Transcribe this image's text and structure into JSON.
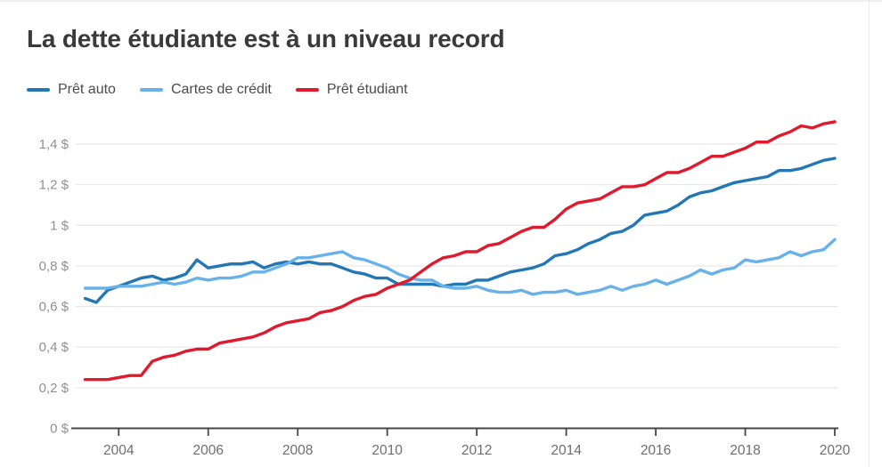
{
  "page": {
    "background": "#ffffff",
    "divider_color": "#e9e9e9",
    "hairline_color": "#f0f0f0"
  },
  "chart_data": {
    "type": "line",
    "title": "La dette étudiante est à un niveau record",
    "legend_position": "top-left",
    "grid": true,
    "colors": {
      "gridline": "#e3e3e3",
      "axis": "#474747",
      "y_tick_text": "#909090",
      "x_tick_text": "#6e6e6e"
    },
    "x_axis": {
      "start_year": 2003,
      "end_year": 2020,
      "frequency": "quarterly",
      "tick_years": [
        2004,
        2006,
        2008,
        2010,
        2012,
        2014,
        2016,
        2018,
        2020
      ],
      "tick_labels": [
        "2004",
        "2006",
        "2008",
        "2010",
        "2012",
        "2014",
        "2016",
        "2018",
        "2020"
      ]
    },
    "y_axis": {
      "min": 0,
      "max": 1.5,
      "tick_values": [
        0,
        0.2,
        0.4,
        0.6,
        0.8,
        1,
        1.2,
        1.4
      ],
      "tick_labels": [
        "0 $",
        "0,2 $",
        "0,4 $",
        "0,6 $",
        "0,8 $",
        "1 $",
        "1,2 $",
        "1,4 $"
      ]
    },
    "series": [
      {
        "key": "pret-auto",
        "name": "Prêt auto",
        "color": "#2277b4",
        "values": [
          0.64,
          0.62,
          0.68,
          0.7,
          0.72,
          0.74,
          0.75,
          0.73,
          0.74,
          0.76,
          0.83,
          0.79,
          0.8,
          0.81,
          0.81,
          0.82,
          0.79,
          0.81,
          0.82,
          0.81,
          0.82,
          0.81,
          0.81,
          0.79,
          0.77,
          0.76,
          0.74,
          0.74,
          0.71,
          0.71,
          0.71,
          0.71,
          0.7,
          0.71,
          0.71,
          0.73,
          0.73,
          0.75,
          0.77,
          0.78,
          0.79,
          0.81,
          0.85,
          0.86,
          0.88,
          0.91,
          0.93,
          0.96,
          0.97,
          1.0,
          1.05,
          1.06,
          1.07,
          1.1,
          1.14,
          1.16,
          1.17,
          1.19,
          1.21,
          1.22,
          1.23,
          1.24,
          1.27,
          1.27,
          1.28,
          1.3,
          1.32,
          1.33
        ]
      },
      {
        "key": "cartes-de-credit",
        "name": "Cartes de crédit",
        "color": "#68b1e9",
        "values": [
          0.69,
          0.69,
          0.69,
          0.7,
          0.7,
          0.7,
          0.71,
          0.72,
          0.71,
          0.72,
          0.74,
          0.73,
          0.74,
          0.74,
          0.75,
          0.77,
          0.77,
          0.79,
          0.81,
          0.84,
          0.84,
          0.85,
          0.86,
          0.87,
          0.84,
          0.83,
          0.81,
          0.79,
          0.76,
          0.74,
          0.73,
          0.73,
          0.7,
          0.69,
          0.69,
          0.7,
          0.68,
          0.67,
          0.67,
          0.68,
          0.66,
          0.67,
          0.67,
          0.68,
          0.66,
          0.67,
          0.68,
          0.7,
          0.68,
          0.7,
          0.71,
          0.73,
          0.71,
          0.73,
          0.75,
          0.78,
          0.76,
          0.78,
          0.79,
          0.83,
          0.82,
          0.83,
          0.84,
          0.87,
          0.85,
          0.87,
          0.88,
          0.93
        ]
      },
      {
        "key": "pret-etudiant",
        "name": "Prêt étudiant",
        "color": "#e01a2d",
        "values": [
          0.24,
          0.24,
          0.24,
          0.25,
          0.26,
          0.26,
          0.33,
          0.35,
          0.36,
          0.38,
          0.39,
          0.39,
          0.42,
          0.43,
          0.44,
          0.45,
          0.47,
          0.5,
          0.52,
          0.53,
          0.54,
          0.57,
          0.58,
          0.6,
          0.63,
          0.65,
          0.66,
          0.69,
          0.71,
          0.73,
          0.77,
          0.81,
          0.84,
          0.85,
          0.87,
          0.87,
          0.9,
          0.91,
          0.94,
          0.97,
          0.99,
          0.99,
          1.03,
          1.08,
          1.11,
          1.12,
          1.13,
          1.16,
          1.19,
          1.19,
          1.2,
          1.23,
          1.26,
          1.26,
          1.28,
          1.31,
          1.34,
          1.34,
          1.36,
          1.38,
          1.41,
          1.41,
          1.44,
          1.46,
          1.49,
          1.48,
          1.5,
          1.51
        ]
      }
    ]
  }
}
